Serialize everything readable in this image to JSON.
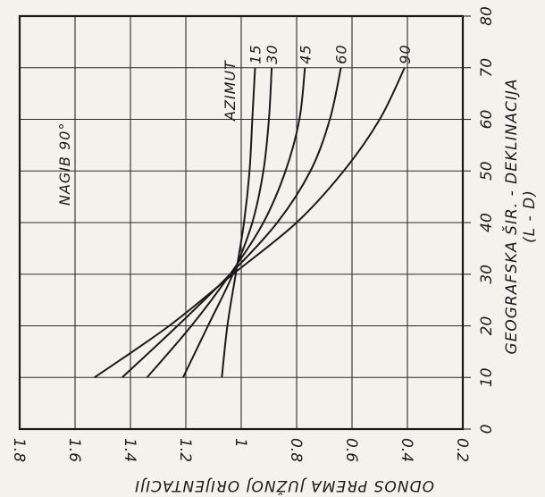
{
  "chart_data": {
    "type": "line",
    "annotations": [
      "NAGIB 90°",
      "AZIMUT"
    ],
    "xlabel": "ODNOS PREMA JUŽNOJ ORIJENTACIJI",
    "ylabel_line1": "GEOGRAFSKA ŠIR. - DEKLINACIJA",
    "ylabel_line2": "(L - D)",
    "xlim": [
      1.8,
      0.2
    ],
    "ylim": [
      0,
      80
    ],
    "x_ticks": [
      "1.8",
      "1.6",
      "1.4",
      "1.2",
      "1",
      "0.8",
      "0.6",
      "0.4",
      "0.2"
    ],
    "y_ticks": [
      "0",
      "10",
      "20",
      "30",
      "40",
      "50",
      "60",
      "70",
      "80"
    ],
    "grid": true,
    "series": [
      {
        "name": "15",
        "points": [
          [
            1.07,
            10
          ],
          [
            1.05,
            20
          ],
          [
            1.02,
            30
          ],
          [
            0.99,
            40
          ],
          [
            0.97,
            50
          ],
          [
            0.96,
            60
          ],
          [
            0.95,
            70
          ]
        ]
      },
      {
        "name": "30",
        "points": [
          [
            1.21,
            10
          ],
          [
            1.12,
            20
          ],
          [
            1.03,
            30
          ],
          [
            0.96,
            40
          ],
          [
            0.92,
            50
          ],
          [
            0.9,
            60
          ],
          [
            0.89,
            70
          ]
        ]
      },
      {
        "name": "45",
        "points": [
          [
            1.34,
            10
          ],
          [
            1.18,
            20
          ],
          [
            1.04,
            30
          ],
          [
            0.92,
            40
          ],
          [
            0.84,
            50
          ],
          [
            0.79,
            60
          ],
          [
            0.77,
            70
          ]
        ]
      },
      {
        "name": "60",
        "points": [
          [
            1.43,
            10
          ],
          [
            1.23,
            20
          ],
          [
            1.04,
            30
          ],
          [
            0.87,
            40
          ],
          [
            0.75,
            50
          ],
          [
            0.68,
            60
          ],
          [
            0.64,
            70
          ]
        ]
      },
      {
        "name": "90",
        "points": [
          [
            1.53,
            10
          ],
          [
            1.26,
            20
          ],
          [
            1.03,
            30
          ],
          [
            0.8,
            40
          ],
          [
            0.63,
            50
          ],
          [
            0.5,
            60
          ],
          [
            0.41,
            70
          ]
        ]
      }
    ]
  }
}
